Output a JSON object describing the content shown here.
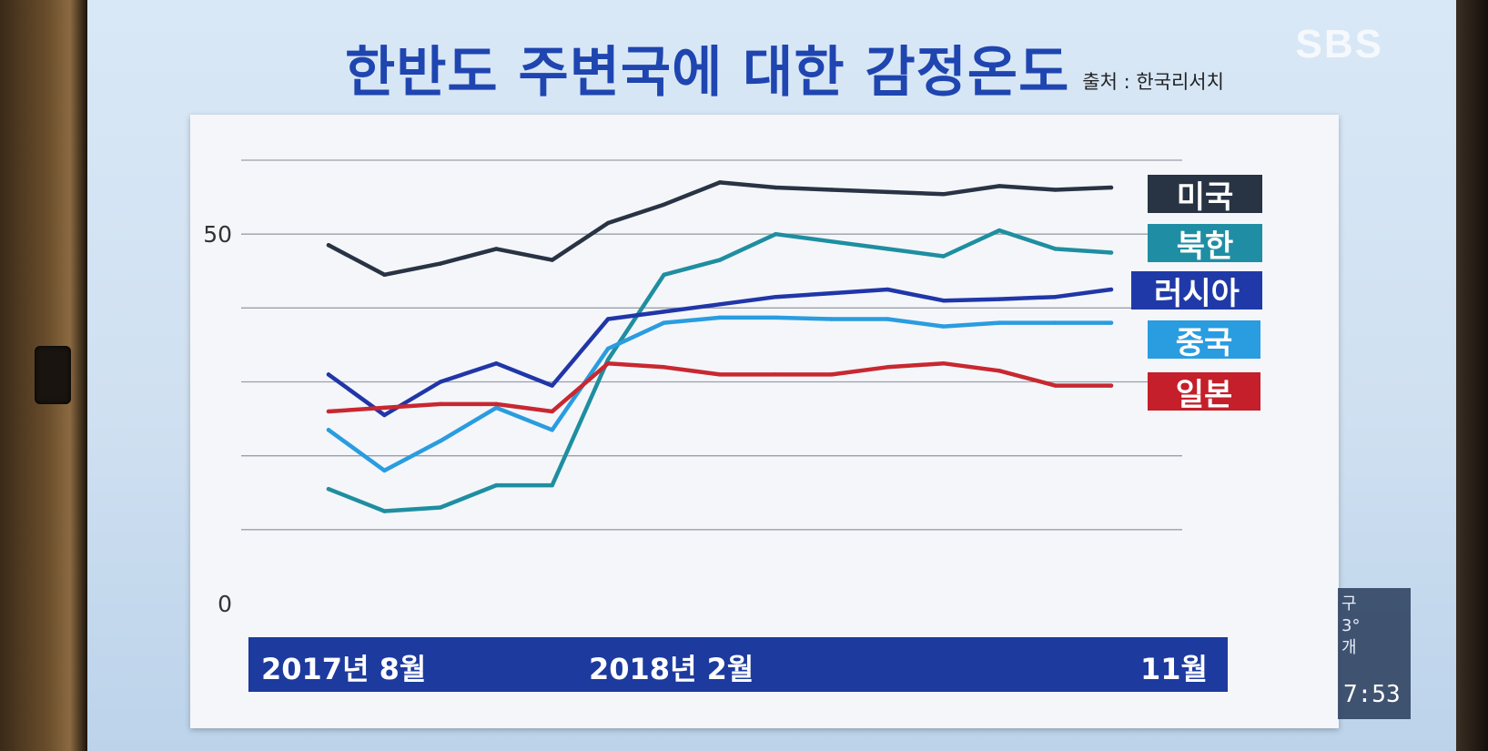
{
  "title": "한반도 주변국에 대한 감정온도",
  "source": "출처 : 한국리서치",
  "broadcaster": "SBS",
  "clock": {
    "time": "7:53",
    "partial_lines": [
      "구",
      "3°",
      "개"
    ]
  },
  "chart_data": {
    "type": "line",
    "title": "한반도 주변국에 대한 감정온도",
    "xlabel": "",
    "ylabel": "",
    "ylim": [
      0,
      60
    ],
    "yticks": [
      {
        "value": 50,
        "label": "50"
      },
      {
        "value": 0,
        "label": "0"
      }
    ],
    "gridlines": [
      60,
      50,
      40,
      30,
      20,
      10
    ],
    "grid": true,
    "legend": "right",
    "x": [
      "2017년 8월",
      "",
      "",
      "",
      "",
      "2018년 2월",
      "",
      "",
      "",
      "",
      "",
      "",
      "",
      "",
      "11월"
    ],
    "x_tick_labels": [
      {
        "index": 0,
        "label": "2017년 8월"
      },
      {
        "index": 5,
        "label": "2018년 2월"
      },
      {
        "index": 14,
        "label": "11월"
      }
    ],
    "series": [
      {
        "name": "미국",
        "color": "#283344",
        "tag_color": "#283344",
        "values": [
          48.5,
          44.5,
          46,
          48,
          46.5,
          51.5,
          54,
          57,
          56.3,
          56,
          55.7,
          55.4,
          56.5,
          56,
          56.3
        ]
      },
      {
        "name": "북한",
        "color": "#1e8ea0",
        "tag_color": "#1f8ea4",
        "values": [
          15.5,
          12.5,
          13,
          16,
          16,
          33,
          44.5,
          46.5,
          50,
          49,
          48,
          47,
          50.5,
          48,
          47.5
        ]
      },
      {
        "name": "러시아",
        "color": "#2036a8",
        "tag_color": "#1f3aa8",
        "values": [
          31,
          25.5,
          30,
          32.5,
          29.5,
          38.5,
          39.5,
          40.5,
          41.5,
          42,
          42.5,
          41,
          41.2,
          41.5,
          42.5
        ]
      },
      {
        "name": "중국",
        "color": "#2a9ce0",
        "tag_color": "#2a9ce0",
        "values": [
          23.5,
          18,
          22,
          26.5,
          23.5,
          34.5,
          38,
          38.7,
          38.7,
          38.5,
          38.5,
          37.5,
          38,
          38,
          38
        ]
      },
      {
        "name": "일본",
        "color": "#c82830",
        "tag_color": "#c41f2a",
        "values": [
          26,
          26.5,
          27,
          27,
          26,
          32.5,
          32,
          31,
          31,
          31,
          32,
          32.5,
          31.5,
          29.5,
          29.5
        ]
      }
    ]
  }
}
